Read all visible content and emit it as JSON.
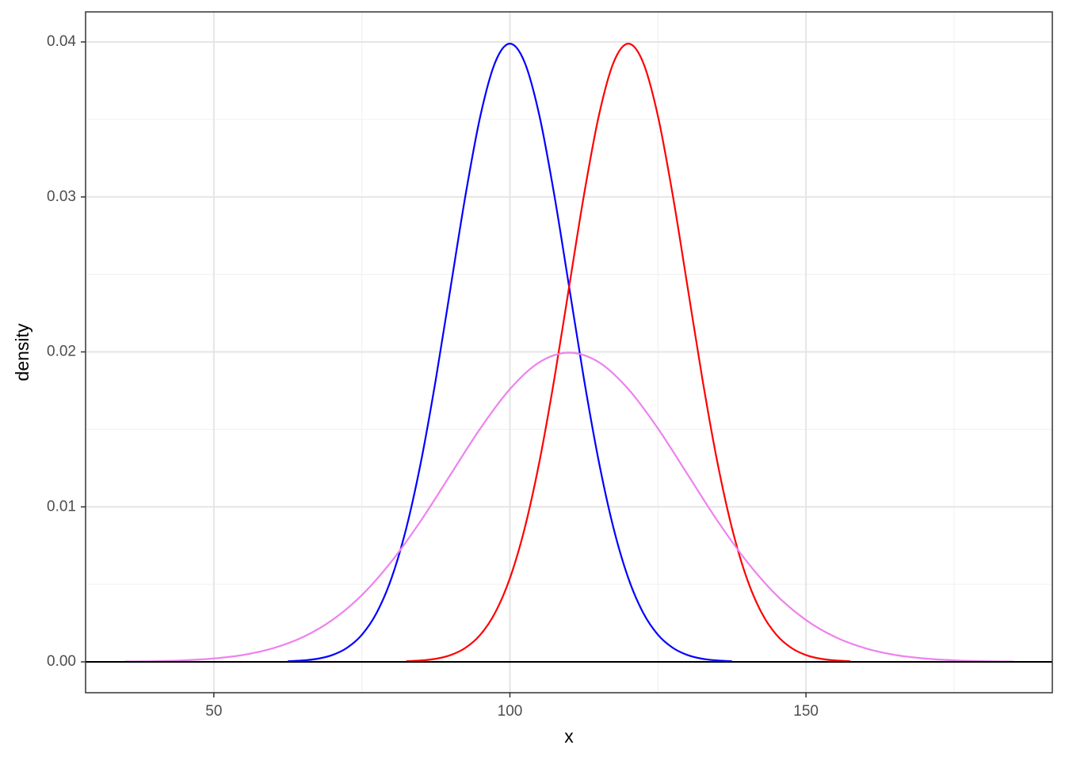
{
  "chart_data": {
    "type": "line",
    "xlabel": "x",
    "ylabel": "density",
    "xlim": [
      28.34,
      191.6
    ],
    "ylim": [
      -0.00199,
      0.04194
    ],
    "xticks": [
      50,
      100,
      150
    ],
    "xminor": [
      75,
      125,
      175
    ],
    "yticks": [
      {
        "value": 0,
        "label": "0.00"
      },
      0.01,
      0.02,
      0.03,
      0.04
    ],
    "yminor": [
      0.005,
      0.015,
      0.025,
      0.035
    ],
    "grid": true,
    "hline": {
      "value": 0,
      "color": "#000000"
    },
    "series": [
      {
        "color": "#0000ff",
        "x": [
          62.5,
          65,
          67.5,
          70,
          72.5,
          75,
          77.5,
          80,
          82.5,
          85,
          87.5,
          90,
          92.5,
          95,
          97.5,
          100,
          102.5,
          105,
          107.5,
          110,
          112.5,
          115,
          117.5,
          120,
          122.5,
          125,
          127.5,
          130,
          132.5,
          135,
          137.5
        ],
        "values": [
          4e-05,
          9e-05,
          0.0002,
          0.00044,
          0.00091,
          0.00175,
          0.00317,
          0.0054,
          0.00863,
          0.01295,
          0.01826,
          0.0242,
          0.03011,
          0.03521,
          0.03867,
          0.03989,
          0.03867,
          0.03521,
          0.03011,
          0.0242,
          0.01826,
          0.01295,
          0.00863,
          0.0054,
          0.00317,
          0.00175,
          0.00091,
          0.00044,
          0.0002,
          9e-05,
          4e-05
        ]
      },
      {
        "color": "#ff0000",
        "x": [
          82.5,
          85,
          87.5,
          90,
          92.5,
          95,
          97.5,
          100,
          102.5,
          105,
          107.5,
          110,
          112.5,
          115,
          117.5,
          120,
          122.5,
          125,
          127.5,
          130,
          132.5,
          135,
          137.5,
          140,
          142.5,
          145,
          147.5,
          150,
          152.5,
          155,
          157.5
        ],
        "values": [
          4e-05,
          9e-05,
          0.0002,
          0.00044,
          0.00091,
          0.00175,
          0.00317,
          0.0054,
          0.00863,
          0.01295,
          0.01826,
          0.0242,
          0.03011,
          0.03521,
          0.03867,
          0.03989,
          0.03867,
          0.03521,
          0.03011,
          0.0242,
          0.01826,
          0.01295,
          0.00863,
          0.0054,
          0.00317,
          0.00175,
          0.00091,
          0.00044,
          0.0002,
          9e-05,
          4e-05
        ]
      },
      {
        "color": "#ee82ee",
        "x": [
          35,
          40,
          45,
          50,
          55,
          60,
          65,
          70,
          75,
          80,
          85,
          90,
          95,
          100,
          105,
          110,
          115,
          120,
          125,
          130,
          135,
          140,
          145,
          150,
          155,
          160,
          165,
          170,
          175,
          180,
          185
        ],
        "values": [
          2e-05,
          4e-05,
          0.0001,
          0.00022,
          0.00045,
          0.00088,
          0.00159,
          0.0027,
          0.00431,
          0.00648,
          0.00913,
          0.0121,
          0.01506,
          0.0176,
          0.01934,
          0.01995,
          0.01934,
          0.0176,
          0.01506,
          0.0121,
          0.00913,
          0.00648,
          0.00431,
          0.0027,
          0.00159,
          0.00088,
          0.00045,
          0.00022,
          0.0001,
          4e-05,
          2e-05
        ]
      }
    ]
  }
}
